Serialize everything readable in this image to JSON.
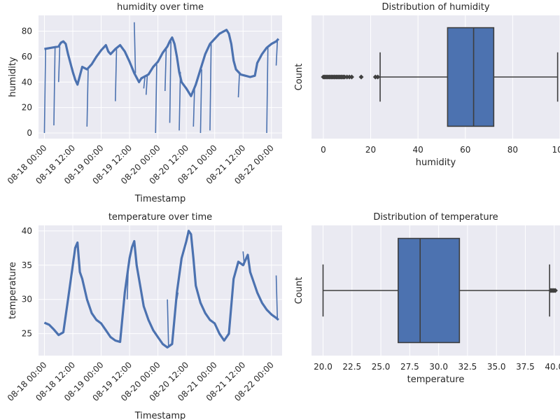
{
  "chart_data": [
    {
      "type": "line",
      "title": "humidity over time",
      "xlabel": "Timestamp",
      "ylabel": "humidity",
      "x_ticks": [
        "08-18 00:00",
        "08-18 12:00",
        "08-19 00:00",
        "08-19 12:00",
        "08-20 00:00",
        "08-20 12:00",
        "08-21 00:00",
        "08-21 12:00",
        "08-22 00:00"
      ],
      "y_ticks": [
        0,
        20,
        40,
        60,
        80
      ],
      "xlim_hours": [
        -2.5,
        100.5
      ],
      "ylim": [
        -4.4,
        92.4
      ],
      "grid": true,
      "color": "#4c72b0",
      "points": [
        [
          0,
          66
        ],
        [
          3,
          67
        ],
        [
          6,
          68
        ],
        [
          7,
          71
        ],
        [
          8,
          72
        ],
        [
          9,
          70
        ],
        [
          10,
          62
        ],
        [
          11,
          55
        ],
        [
          12,
          48
        ],
        [
          13,
          42
        ],
        [
          14,
          38
        ],
        [
          15,
          45
        ],
        [
          16,
          52
        ],
        [
          18,
          50
        ],
        [
          20,
          54
        ],
        [
          22,
          60
        ],
        [
          24,
          65
        ],
        [
          26,
          69
        ],
        [
          27,
          64
        ],
        [
          28,
          62
        ],
        [
          30,
          66
        ],
        [
          32,
          69
        ],
        [
          34,
          64
        ],
        [
          36,
          56
        ],
        [
          38,
          47
        ],
        [
          40,
          40
        ],
        [
          41,
          43
        ],
        [
          44,
          46
        ],
        [
          46,
          52
        ],
        [
          48,
          56
        ],
        [
          50,
          63
        ],
        [
          52,
          68
        ],
        [
          53,
          72
        ],
        [
          54,
          75
        ],
        [
          55,
          70
        ],
        [
          56,
          60
        ],
        [
          57,
          48
        ],
        [
          58,
          40
        ],
        [
          60,
          35
        ],
        [
          62,
          29
        ],
        [
          64,
          38
        ],
        [
          66,
          50
        ],
        [
          68,
          62
        ],
        [
          70,
          70
        ],
        [
          72,
          74
        ],
        [
          74,
          78
        ],
        [
          76,
          80
        ],
        [
          77,
          81
        ],
        [
          78,
          78
        ],
        [
          79,
          70
        ],
        [
          80,
          57
        ],
        [
          81,
          50
        ],
        [
          83,
          46
        ],
        [
          85,
          45
        ],
        [
          87,
          44
        ],
        [
          89,
          45
        ],
        [
          90,
          55
        ],
        [
          92,
          62
        ],
        [
          94,
          67
        ],
        [
          96,
          70
        ],
        [
          98,
          72
        ],
        [
          99,
          74
        ]
      ],
      "spikes": [
        [
          0,
          0
        ],
        [
          0.5,
          66
        ],
        [
          4,
          6
        ],
        [
          4.5,
          67
        ],
        [
          6,
          40
        ],
        [
          6.5,
          68
        ],
        [
          18,
          5
        ],
        [
          18.5,
          50
        ],
        [
          30,
          25
        ],
        [
          30.5,
          66
        ],
        [
          38,
          87
        ],
        [
          38.5,
          47
        ],
        [
          42,
          35
        ],
        [
          42.5,
          44
        ],
        [
          43,
          30
        ],
        [
          43.5,
          45
        ],
        [
          47,
          0
        ],
        [
          47.5,
          54
        ],
        [
          51,
          33
        ],
        [
          51.5,
          66
        ],
        [
          53,
          8
        ],
        [
          53.5,
          72
        ],
        [
          57,
          2
        ],
        [
          57.5,
          48
        ],
        [
          63,
          5
        ],
        [
          63.5,
          36
        ],
        [
          66,
          0
        ],
        [
          66.5,
          50
        ],
        [
          70,
          2
        ],
        [
          70.5,
          70
        ],
        [
          82,
          28
        ],
        [
          82.5,
          48
        ],
        [
          94,
          0
        ],
        [
          94.5,
          67
        ],
        [
          98,
          53
        ],
        [
          98.5,
          72
        ]
      ]
    },
    {
      "type": "box",
      "title": "Distribution of humidity",
      "xlabel": "humidity",
      "ylabel": "Count",
      "x_ticks": [
        0,
        20,
        40,
        60,
        80,
        100
      ],
      "xlim": [
        -5,
        100
      ],
      "grid": true,
      "color": "#4c72b0",
      "q1": 52.5,
      "median": 63.5,
      "q3": 72,
      "whisker_low": 24,
      "whisker_high": 99,
      "outliers": [
        0,
        0.5,
        1,
        1.5,
        2,
        2.5,
        3,
        3.5,
        4,
        4.5,
        5,
        5.5,
        6,
        6.5,
        7,
        7.5,
        8,
        8.5,
        9,
        10,
        11,
        12,
        16,
        22,
        23
      ]
    },
    {
      "type": "line",
      "title": "temperature over time",
      "xlabel": "Timestamp",
      "ylabel": "temperature",
      "x_ticks": [
        "08-18 00:00",
        "08-18 12:00",
        "08-19 00:00",
        "08-19 12:00",
        "08-20 00:00",
        "08-20 12:00",
        "08-21 00:00",
        "08-21 12:00",
        "08-22 00:00"
      ],
      "y_ticks": [
        25,
        30,
        35,
        40
      ],
      "xlim_hours": [
        -2.5,
        100.5
      ],
      "ylim": [
        21.8,
        40.8
      ],
      "grid": true,
      "color": "#4c72b0",
      "points": [
        [
          0,
          26.6
        ],
        [
          2,
          26.3
        ],
        [
          4,
          25.6
        ],
        [
          6,
          24.8
        ],
        [
          8,
          25.2
        ],
        [
          10,
          30
        ],
        [
          12,
          35
        ],
        [
          13,
          37.5
        ],
        [
          14,
          38.3
        ],
        [
          15,
          34
        ],
        [
          16,
          33
        ],
        [
          18,
          30
        ],
        [
          20,
          28
        ],
        [
          22,
          27
        ],
        [
          24,
          26.5
        ],
        [
          26,
          25.5
        ],
        [
          28,
          24.5
        ],
        [
          30,
          24
        ],
        [
          32,
          23.8
        ],
        [
          34,
          31
        ],
        [
          36,
          36
        ],
        [
          37,
          37.6
        ],
        [
          38,
          38.5
        ],
        [
          39,
          35
        ],
        [
          40,
          33
        ],
        [
          42,
          29
        ],
        [
          44,
          27
        ],
        [
          46,
          25.5
        ],
        [
          48,
          24.5
        ],
        [
          50,
          23.5
        ],
        [
          52,
          23
        ],
        [
          54,
          23.5
        ],
        [
          56,
          31
        ],
        [
          58,
          36
        ],
        [
          60,
          38.5
        ],
        [
          61,
          40
        ],
        [
          62,
          39.5
        ],
        [
          63,
          36
        ],
        [
          64,
          32
        ],
        [
          66,
          29.5
        ],
        [
          68,
          28
        ],
        [
          70,
          27
        ],
        [
          72,
          26.5
        ],
        [
          74,
          25
        ],
        [
          76,
          24
        ],
        [
          78,
          25
        ],
        [
          80,
          33
        ],
        [
          82,
          35.5
        ],
        [
          84,
          35
        ],
        [
          86,
          36.5
        ],
        [
          87,
          34
        ],
        [
          88,
          33
        ],
        [
          90,
          31
        ],
        [
          92,
          29.5
        ],
        [
          94,
          28.5
        ],
        [
          96,
          27.8
        ],
        [
          98,
          27.3
        ],
        [
          99,
          27
        ]
      ],
      "spikes": [
        [
          35,
          30
        ],
        [
          35.5,
          35
        ],
        [
          52,
          30
        ],
        [
          52.5,
          23
        ],
        [
          56,
          30
        ],
        [
          56.5,
          31
        ],
        [
          84,
          37
        ],
        [
          84.5,
          35
        ],
        [
          98,
          33.5
        ],
        [
          98.5,
          27.3
        ]
      ]
    },
    {
      "type": "box",
      "title": "Distribution of temperature",
      "xlabel": "temperature",
      "ylabel": "Count",
      "x_ticks": [
        "20.0",
        "22.5",
        "25.0",
        "27.5",
        "30.0",
        "32.5",
        "35.0",
        "37.5",
        "40.0"
      ],
      "xlim": [
        19,
        40.5
      ],
      "grid": true,
      "color": "#4c72b0",
      "q1": 26.5,
      "median": 28.4,
      "q3": 31.8,
      "whisker_low": 20,
      "whisker_high": 39.6,
      "outliers": [
        39.7,
        39.8,
        39.9,
        40.0,
        40.1
      ]
    }
  ]
}
